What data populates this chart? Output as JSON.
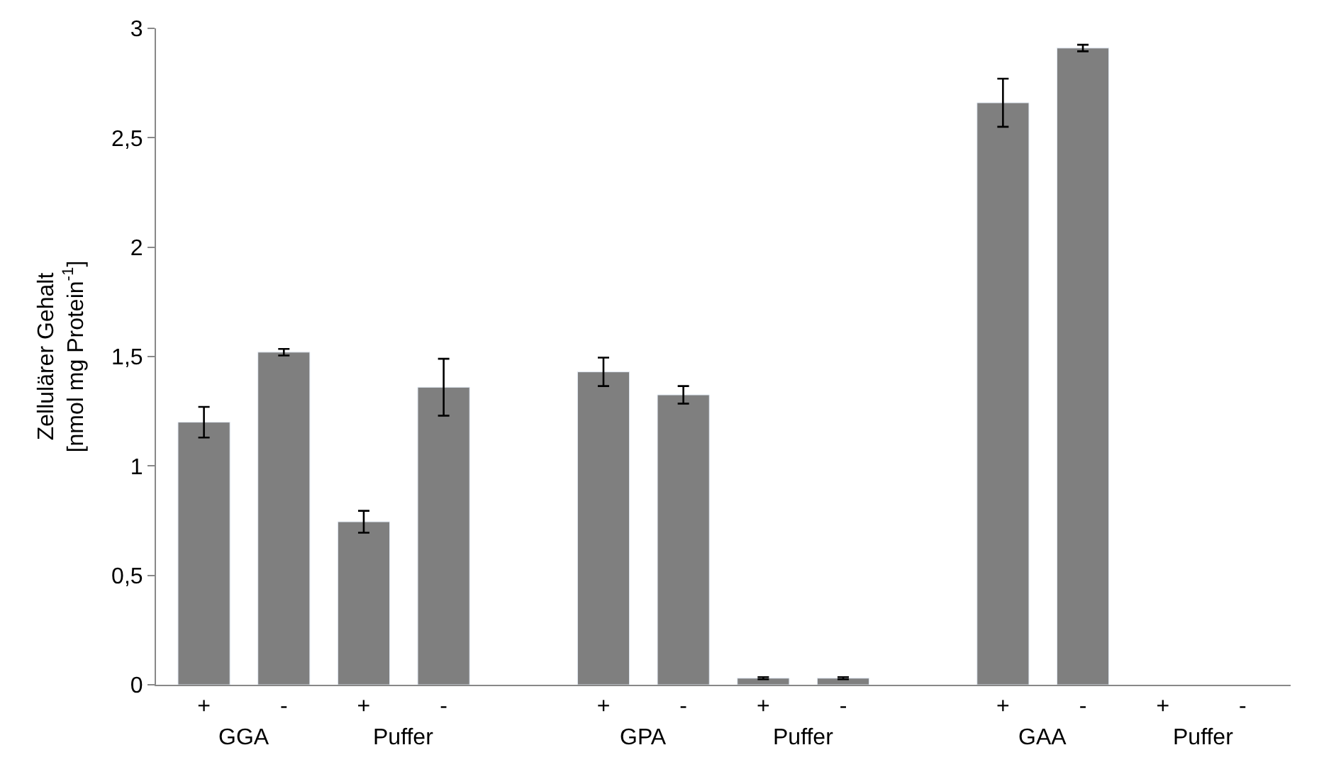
{
  "chart_data": {
    "type": "bar",
    "ylabel": "Zellulärer Gehalt\n[nmol mg Protein$^{-1}$]",
    "categories": [
      "+",
      "-",
      "+",
      "-",
      null,
      "+",
      "-",
      "+",
      "-",
      null,
      "+",
      "-",
      "+",
      "-"
    ],
    "values": [
      1.2,
      1.52,
      0.745,
      1.36,
      null,
      1.43,
      1.325,
      0.03,
      0.03,
      null,
      2.66,
      2.91,
      null,
      null
    ],
    "errors": [
      0.07,
      0.015,
      0.05,
      0.13,
      null,
      0.065,
      0.04,
      0.005,
      0.005,
      null,
      0.11,
      0.015,
      null,
      null
    ],
    "color": "#7f7f7f",
    "ylim": [
      0,
      3
    ],
    "yticks": [
      0,
      {
        "value": 0.5,
        "label": "0,5"
      },
      1,
      {
        "value": 1.5,
        "label": "1,5"
      },
      2,
      {
        "value": 2.5,
        "label": "2,5"
      },
      3
    ],
    "annotations": [
      "GGA",
      "Puffer",
      "GPA",
      "Puffer",
      "GAA",
      "Puffer"
    ]
  }
}
